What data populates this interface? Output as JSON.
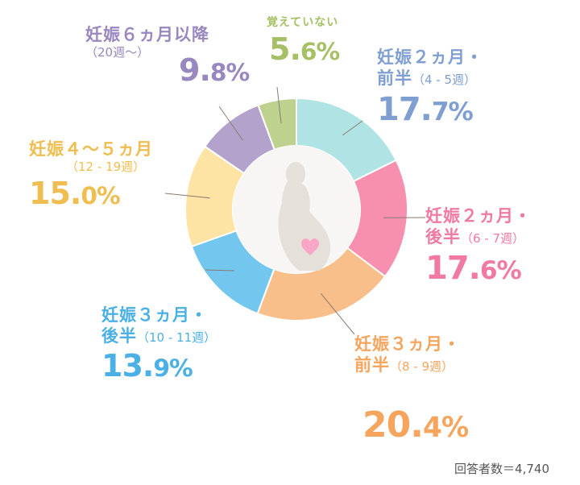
{
  "chart_data": {
    "type": "pie",
    "subtype": "donut",
    "categories": [
      "妊娠２ヵ月・前半（4-5週）",
      "妊娠２ヵ月・後半（6-7週）",
      "妊娠３ヵ月・前半（8-9週）",
      "妊娠３ヵ月・後半（10-11週）",
      "妊娠４～５ヵ月（12-19週）",
      "妊娠６ヵ月以降（20週～）",
      "覚えていない"
    ],
    "values": [
      17.7,
      17.6,
      20.4,
      13.9,
      15.0,
      9.8,
      5.6
    ],
    "unit": "%",
    "colors": [
      "#b0e4e4",
      "#f78fae",
      "#f9bf8a",
      "#73c6ee",
      "#fde3a4",
      "#b3a3cc",
      "#bed18f"
    ]
  },
  "labels": [
    {
      "name": "妊娠２ヵ月・",
      "name2": "前半",
      "sub": "（4 - 5週）",
      "pct_int": "17.",
      "pct_dec": "7%",
      "color": "#7f9fd0"
    },
    {
      "name": "妊娠２ヵ月・",
      "name2": "後半",
      "sub": "（6 - 7週）",
      "pct_int": "17.",
      "pct_dec": "6%",
      "color": "#f07aa2"
    },
    {
      "name": "妊娠３ヵ月・",
      "name2": "前半",
      "sub": "（8 - 9週）",
      "pct_int": "20.",
      "pct_dec": "4%",
      "color": "#f5a55e"
    },
    {
      "name": "妊娠３ヵ月・",
      "name2": "後半",
      "sub": "（10 - 11週）",
      "pct_int": "13.",
      "pct_dec": "9%",
      "color": "#4ab0e6"
    },
    {
      "name": "妊娠４～５ヵ月",
      "name2": "",
      "sub": "（12 - 19週）",
      "pct_int": "15.",
      "pct_dec": "0%",
      "color": "#f0be50"
    },
    {
      "name": "妊娠６ヵ月以降",
      "name2": "",
      "sub": "（20週～）",
      "pct_int": "9.",
      "pct_dec": "8%",
      "color": "#9987bf"
    },
    {
      "name": "覚えていない",
      "name2": "",
      "sub": "",
      "pct_int": "5.",
      "pct_dec": "6%",
      "color": "#a5c065"
    }
  ],
  "footer": "回答者数＝4,740"
}
